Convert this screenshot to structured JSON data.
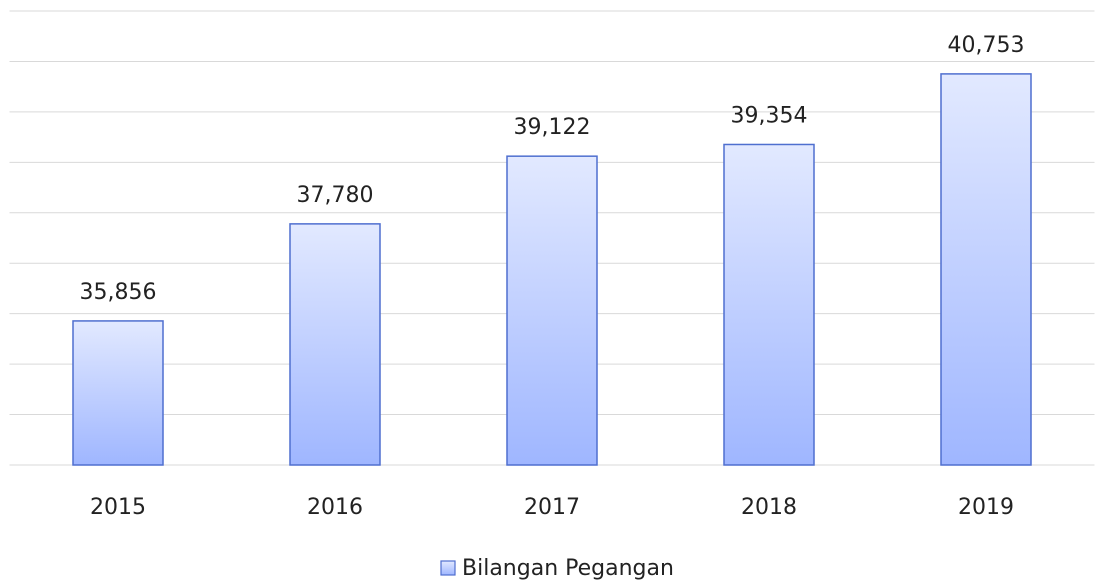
{
  "chart_data": {
    "type": "bar",
    "categories": [
      "2015",
      "2016",
      "2017",
      "2018",
      "2019"
    ],
    "series": [
      {
        "name": "Bilangan Pegangan",
        "color": "#9fb6ff",
        "values": [
          35856,
          37780,
          39122,
          39354,
          40753
        ],
        "value_labels": [
          "35,856",
          "37,780",
          "39,122",
          "39,354",
          "40,753"
        ]
      }
    ],
    "ylim": [
      33000,
      42000
    ],
    "yticks": [
      33000,
      34000,
      35000,
      36000,
      37000,
      38000,
      39000,
      40000,
      41000,
      42000
    ],
    "grid": true,
    "legend": "bottom"
  }
}
